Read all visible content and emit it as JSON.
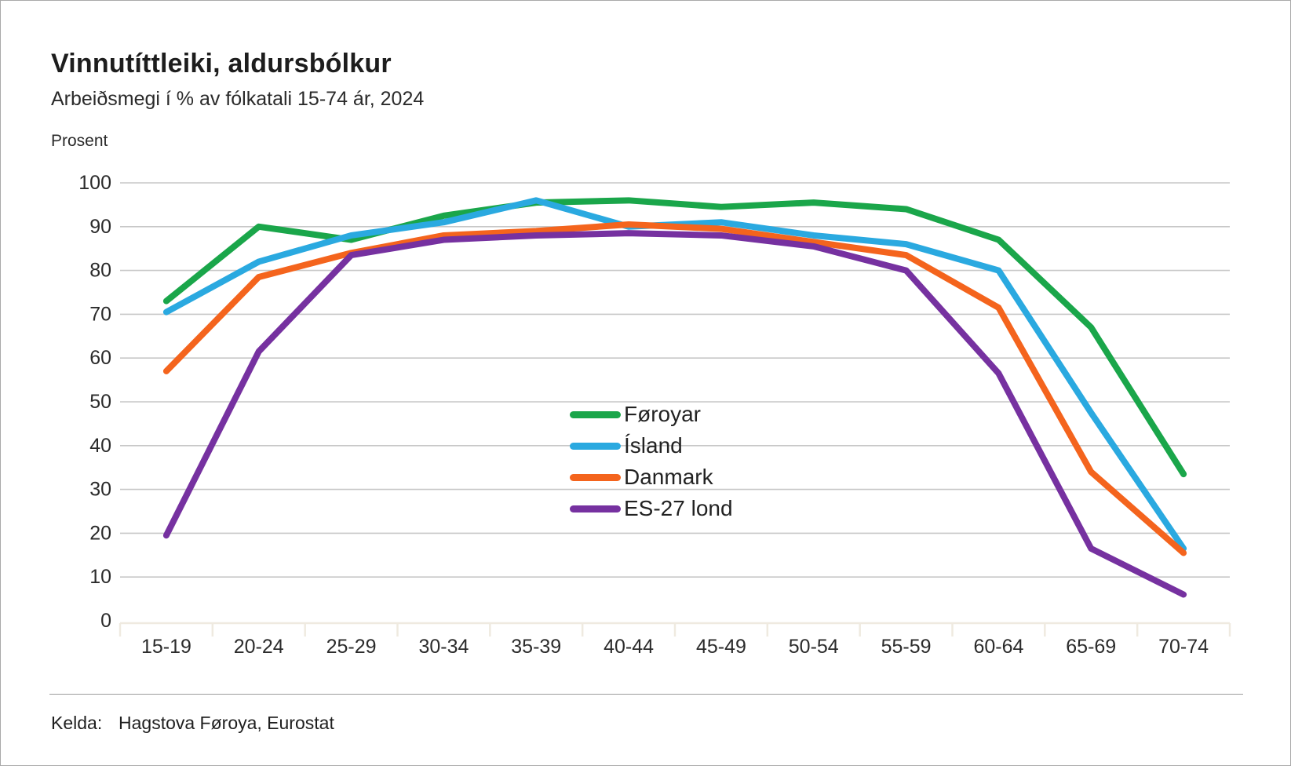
{
  "header": {
    "title": "Vinnutíttleiki, aldursbólkur",
    "subtitle": "Arbeiðsmegi í % av fólkatali 15-74 ár, 2024"
  },
  "chart": {
    "y_axis_title": "Prosent"
  },
  "chart_data": {
    "type": "line",
    "title": "Vinnutíttleiki, aldursbólkur",
    "subtitle": "Arbeiðsmegi í % av fólkatali 15-74 ár, 2024",
    "ylabel": "Prosent",
    "xlabel": "",
    "ylim": [
      0,
      100
    ],
    "yticks": [
      0,
      10,
      20,
      30,
      40,
      50,
      60,
      70,
      80,
      90,
      100
    ],
    "grid": "horizontal",
    "legend_position": "inside-center",
    "categories": [
      "15-19",
      "20-24",
      "25-29",
      "30-34",
      "35-39",
      "40-44",
      "45-49",
      "50-54",
      "55-59",
      "60-64",
      "65-69",
      "70-74"
    ],
    "series": [
      {
        "name": "Føroyar",
        "color": "#1AA64A",
        "values": [
          73,
          90,
          87,
          92.5,
          95.5,
          96,
          94.5,
          95.5,
          94,
          87,
          67,
          33.5
        ]
      },
      {
        "name": "Ísland",
        "color": "#2AA9E0",
        "values": [
          70.5,
          82,
          88,
          91,
          96,
          90,
          91,
          88,
          86,
          80,
          47.5,
          16.5
        ]
      },
      {
        "name": "Danmark",
        "color": "#F4641D",
        "values": [
          57,
          78.5,
          84,
          88,
          89,
          90.5,
          89.5,
          86.5,
          83.5,
          71.5,
          34,
          15.5
        ]
      },
      {
        "name": "ES-27 lond",
        "color": "#7631A0",
        "values": [
          19.5,
          61.5,
          83.5,
          87,
          88,
          88.5,
          88,
          85.5,
          80,
          56.5,
          16.5,
          6
        ]
      }
    ],
    "style": {
      "gridline_color": "#C7C7C7",
      "axis_line_color": "#EFEAE0",
      "tick_label_color": "#2b2b2b"
    }
  },
  "footer": {
    "source_label": "Kelda:",
    "source_text": "Hagstova Føroya, Eurostat"
  }
}
